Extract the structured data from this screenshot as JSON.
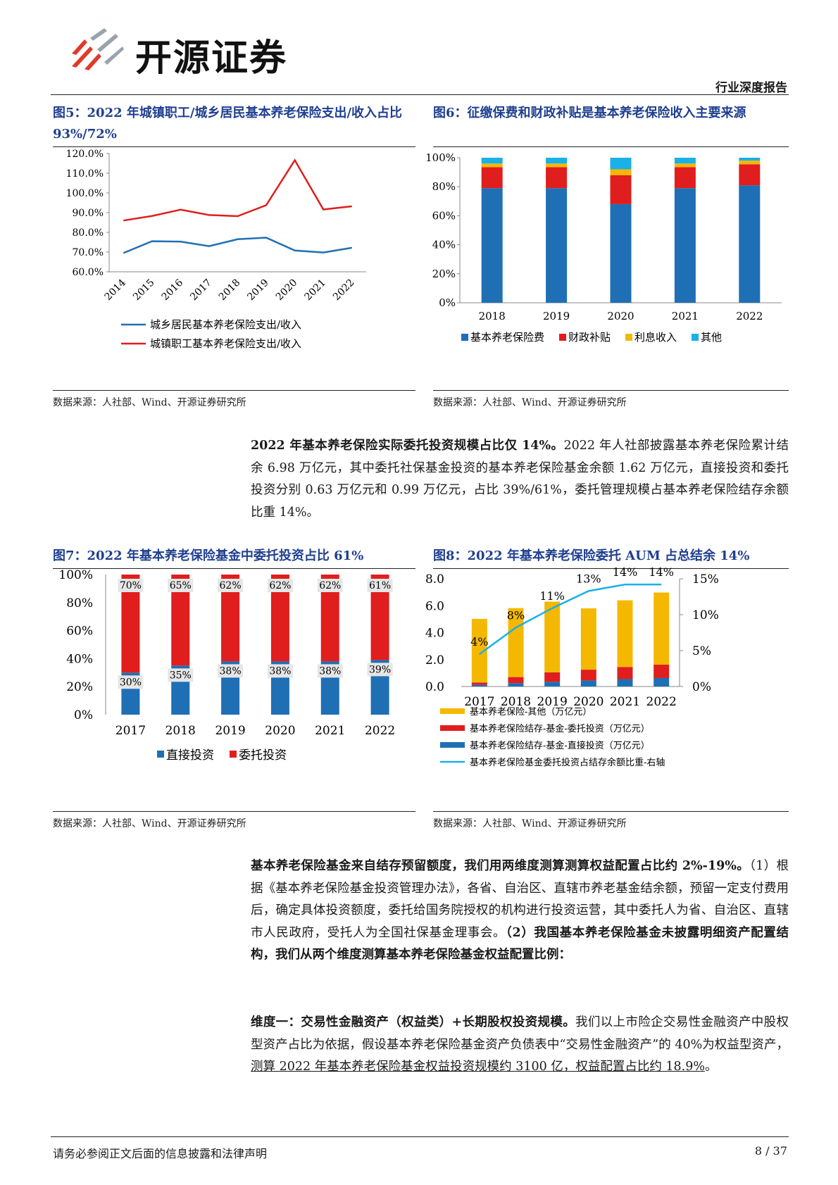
{
  "header": {
    "brand": "开源证券",
    "report_type": "行业深度报告"
  },
  "fig5": {
    "title": "图5：2022 年城镇职工/城乡居民基本养老保险支出/收入占比 93%/72%",
    "source": "数据来源：人社部、Wind、开源证券研究所",
    "chart_data": {
      "type": "line",
      "x": [
        "2014",
        "2015",
        "2016",
        "2017",
        "2018",
        "2019",
        "2020",
        "2021",
        "2022"
      ],
      "ylim": [
        60,
        120
      ],
      "yticks": [
        "60.0%",
        "70.0%",
        "80.0%",
        "90.0%",
        "100.0%",
        "110.0%",
        "120.0%"
      ],
      "series": [
        {
          "name": "城乡居民基本养老保险支出/收入",
          "color": "#1f6fb5",
          "values": [
            69.5,
            75.5,
            75.3,
            73,
            76.5,
            77.3,
            70.8,
            69.8,
            72.2
          ]
        },
        {
          "name": "城镇职工基本养老保险支出/收入",
          "color": "#e01e1e",
          "values": [
            86,
            88.3,
            91.5,
            88.8,
            88.2,
            93.8,
            116.6,
            91.6,
            93.2
          ]
        }
      ]
    }
  },
  "fig6": {
    "title": "图6：征缴保费和财政补贴是基本养老保险收入主要来源",
    "source": "数据来源：人社部、Wind、开源证券研究所",
    "chart_data": {
      "type": "bar",
      "stacked": true,
      "categories": [
        "2018",
        "2019",
        "2020",
        "2021",
        "2022"
      ],
      "ylim": [
        0,
        100
      ],
      "yticks": [
        "0%",
        "20%",
        "40%",
        "60%",
        "80%",
        "100%"
      ],
      "series": [
        {
          "name": "基本养老保险费",
          "color": "#1f6fb5",
          "values": [
            79,
            79,
            68,
            79,
            81
          ]
        },
        {
          "name": "财政补贴",
          "color": "#e01e1e",
          "values": [
            14.5,
            14.5,
            20,
            14.5,
            14.5
          ]
        },
        {
          "name": "利息收入",
          "color": "#f5b800",
          "values": [
            2.5,
            2.5,
            4,
            2.5,
            2.5
          ]
        },
        {
          "name": "其他",
          "color": "#1ab0e8",
          "values": [
            4,
            4,
            8,
            4,
            2
          ]
        }
      ]
    }
  },
  "para1": {
    "lead": "2022 年基本养老保险实际委托投资规模占比仅 14%。",
    "text": "2022 年人社部披露基本养老保险累计结余 6.98 万亿元，其中委托社保基金投资的基本养老保险基金余额 1.62 万亿元，直接投资和委托投资分别 0.63 万亿元和 0.99 万亿元，占比 39%/61%，委托管理规模占基本养老保险结存余额比重 14%。"
  },
  "fig7": {
    "title": "图7：2022 年基本养老保险基金中委托投资占比 61%",
    "source": "数据来源：人社部、Wind、开源证券研究所",
    "chart_data": {
      "type": "bar",
      "stacked": true,
      "categories": [
        "2017",
        "2018",
        "2019",
        "2020",
        "2021",
        "2022"
      ],
      "ylim": [
        0,
        100
      ],
      "yticks": [
        "0%",
        "20%",
        "40%",
        "60%",
        "80%",
        "100%"
      ],
      "series": [
        {
          "name": "直接投资",
          "color": "#1f6fb5",
          "values": [
            30,
            35,
            38,
            38,
            38,
            39
          ],
          "labels": [
            "30%",
            "35%",
            "38%",
            "38%",
            "38%",
            "39%"
          ]
        },
        {
          "name": "委托投资",
          "color": "#e01e1e",
          "values": [
            70,
            65,
            62,
            62,
            62,
            61
          ],
          "labels": [
            "70%",
            "65%",
            "62%",
            "62%",
            "62%",
            "61%"
          ]
        }
      ]
    }
  },
  "fig8": {
    "title": "图8：2022 年基本养老保险委托 AUM 占总结余 14%",
    "source": "数据来源：人社部、Wind、开源证券研究所",
    "chart_data": {
      "type": "bar",
      "stacked": true,
      "categories": [
        "2017",
        "2018",
        "2019",
        "2020",
        "2021",
        "2022"
      ],
      "ylim": [
        0,
        8
      ],
      "yticks": [
        "0.0",
        "2.0",
        "4.0",
        "6.0",
        "8.0"
      ],
      "y2lim": [
        0,
        15
      ],
      "y2ticks": [
        "0%",
        "5%",
        "10%",
        "15%"
      ],
      "series": [
        {
          "name": "基本养老保险结存-基金-直接投资（万亿元）",
          "color": "#1f6fb5",
          "values": [
            0.12,
            0.25,
            0.35,
            0.45,
            0.55,
            0.63
          ]
        },
        {
          "name": "基本养老保险结存-基金-委托投资（万亿元）",
          "color": "#e01e1e",
          "values": [
            0.18,
            0.45,
            0.7,
            0.8,
            0.9,
            0.99
          ]
        },
        {
          "name": "基本养老保险-其他（万亿元）",
          "color": "#f5b800",
          "values": [
            4.72,
            5.12,
            5.25,
            4.55,
            4.95,
            5.36
          ]
        }
      ],
      "line": {
        "name": "基本养老保险基金委托投资占结存余额比重-右轴",
        "color": "#1ab0e8",
        "values": [
          4.5,
          8.2,
          10.9,
          13.3,
          14.2,
          14.2
        ],
        "labels": [
          "4%",
          "8%",
          "11%",
          "13%",
          "14%",
          "14%"
        ]
      },
      "legend_order": [
        2,
        1,
        0
      ]
    }
  },
  "para2": {
    "lead": "基本养老保险基金来自结存预留额度，我们用两维度测算测算权益配置占比约 2%-19%。",
    "text1": "（1）根据《基本养老保险基金投资管理办法》，各省、自治区、直辖市养老基金结余额，预留一定支付费用后，确定具体投资额度，委托给国务院授权的机构进行投资运营，其中委托人为省、自治区、直辖市人民政府，受托人为全国社保基金理事会。",
    "text2": "（2）我国基本养老保险基金未披露明细资产配置结构，",
    "tail": "我们从两个维度测算基本养老保险基金权益配置比例："
  },
  "para3": {
    "lead": "维度一：交易性金融资产（权益类）+长期股权投资规模。",
    "text": "我们以上市险企交易性金融资产中股权型资产占比为依据，假设基本养老保险基金资产负债表中“交易性金融资产”的 40%为权益型资产，",
    "underlined": "测算 2022 年基本养老保险基金权益投资规模约 3100 亿，权益配置占比约 18.9%",
    "end": "。"
  },
  "footer": {
    "disclaimer": "请务必参阅正文后面的信息披露和法律声明",
    "page": "8 / 37"
  }
}
